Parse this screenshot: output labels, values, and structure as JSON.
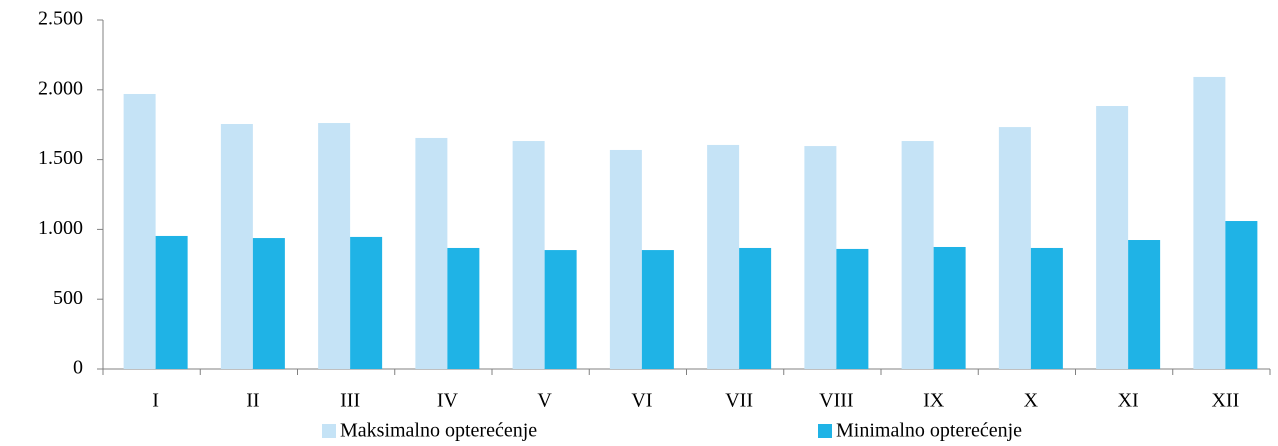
{
  "chart_data": {
    "type": "bar",
    "categories": [
      "I",
      "II",
      "III",
      "IV",
      "V",
      "VI",
      "VII",
      "VIII",
      "IX",
      "X",
      "XI",
      "XII"
    ],
    "series": [
      {
        "name": "Maksimalno opterećenje",
        "color": "#c5e3f6",
        "values": [
          1970,
          1755,
          1762,
          1655,
          1633,
          1569,
          1605,
          1597,
          1633,
          1733,
          1884,
          2092
        ]
      },
      {
        "name": "Minimalno opterećenje",
        "color": "#1fb3e6",
        "values": [
          953,
          938,
          946,
          867,
          852,
          852,
          867,
          860,
          874,
          867,
          924,
          1060
        ]
      }
    ],
    "ylim": [
      0,
      2500
    ],
    "yticks": [
      0,
      500,
      {
        "value": 1000,
        "label": "1.000"
      },
      {
        "value": 1500,
        "label": "1.500"
      },
      {
        "value": 2000,
        "label": "2.000"
      },
      {
        "value": 2500,
        "label": "2.500"
      }
    ],
    "grid": false,
    "legend": "bottom"
  }
}
